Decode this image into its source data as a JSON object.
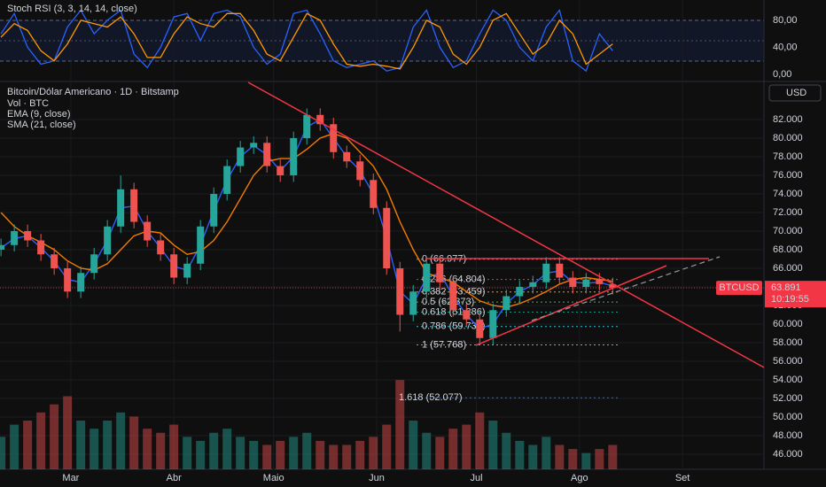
{
  "chart_data": [
    {
      "type": "line",
      "title": "Stoch RSI (3, 3, 14, 14, close)",
      "x": [
        -21,
        -17,
        -13,
        -9,
        -5,
        -1,
        3,
        7,
        11,
        15,
        19,
        23,
        27,
        31,
        35,
        39,
        43,
        47,
        51,
        55,
        59,
        63,
        67,
        71,
        75,
        79,
        83,
        87,
        91,
        95,
        99,
        103,
        107,
        111,
        115,
        119,
        123,
        127,
        131,
        135,
        139,
        143,
        147,
        151,
        155,
        159,
        163
      ],
      "xlim": [
        -21.3,
        208.5
      ],
      "ylim": [
        -10.5,
        110
      ],
      "yticks": [
        {
          "value": 0,
          "label": "0,00"
        },
        {
          "value": 40,
          "label": "40,00"
        },
        {
          "value": 80,
          "label": "80,00"
        }
      ],
      "series": [
        {
          "color": "#2962ff",
          "values": [
            60,
            90,
            40,
            15,
            20,
            70,
            95,
            60,
            80,
            95,
            30,
            10,
            40,
            85,
            90,
            50,
            90,
            95,
            85,
            40,
            15,
            30,
            90,
            95,
            60,
            20,
            10,
            15,
            20,
            5,
            10,
            70,
            95,
            40,
            10,
            20,
            60,
            95,
            80,
            40,
            20,
            70,
            95,
            20,
            5,
            60,
            35
          ]
        },
        {
          "color": "#ff9800",
          "values": [
            55,
            75,
            65,
            35,
            20,
            45,
            80,
            75,
            70,
            85,
            60,
            25,
            25,
            60,
            85,
            75,
            70,
            90,
            90,
            65,
            30,
            20,
            55,
            90,
            80,
            45,
            15,
            12,
            15,
            12,
            8,
            40,
            80,
            70,
            30,
            15,
            40,
            80,
            90,
            60,
            30,
            45,
            80,
            60,
            15,
            30,
            45
          ]
        }
      ]
    },
    {
      "type": "candlestick",
      "title": "Bitcoin/Dólar Americano · 1D · Bitstamp",
      "currency": "USD",
      "x": [
        -21,
        -17,
        -13,
        -9,
        -5,
        -1,
        3,
        7,
        11,
        15,
        19,
        23,
        27,
        31,
        35,
        39,
        43,
        47,
        51,
        55,
        59,
        63,
        67,
        71,
        75,
        79,
        83,
        87,
        91,
        95,
        99,
        103,
        107,
        111,
        115,
        119,
        123,
        127,
        131,
        135,
        139,
        143,
        147,
        151,
        155,
        159,
        163
      ],
      "open": [
        68000,
        68500,
        70000,
        69000,
        67500,
        66000,
        63500,
        65500,
        67500,
        70500,
        74500,
        71000,
        69000,
        67500,
        65000,
        66500,
        70500,
        74000,
        77000,
        79000,
        79500,
        77000,
        76000,
        80000,
        82500,
        81500,
        78500,
        77500,
        75500,
        72500,
        66000,
        61000,
        63500,
        66500,
        64500,
        61500,
        60500,
        58500,
        61500,
        63000,
        64000,
        64500,
        66500,
        65000,
        64000,
        64800,
        64300
      ],
      "high": [
        69200,
        70700,
        70700,
        69700,
        68200,
        66700,
        66200,
        68200,
        71200,
        76000,
        75200,
        71700,
        69700,
        68200,
        67200,
        71200,
        74700,
        77700,
        79700,
        80200,
        80200,
        77700,
        80700,
        83200,
        83200,
        82200,
        79200,
        78200,
        76200,
        73200,
        66700,
        64200,
        67200,
        67200,
        65200,
        62200,
        61200,
        62200,
        63700,
        64700,
        65200,
        67200,
        67200,
        65700,
        65500,
        65500,
        65000
      ],
      "low": [
        67300,
        67800,
        68300,
        66800,
        65300,
        62800,
        62800,
        64800,
        66800,
        69800,
        70300,
        68300,
        66800,
        64300,
        64300,
        65800,
        69800,
        73300,
        76300,
        78300,
        76300,
        75300,
        75300,
        79300,
        80800,
        77800,
        76800,
        74800,
        71800,
        65300,
        59200,
        60300,
        62800,
        63800,
        60800,
        59800,
        57800,
        57800,
        60800,
        62300,
        63300,
        63800,
        64300,
        63300,
        63300,
        63600,
        63200
      ],
      "close": [
        68500,
        70000,
        69000,
        67500,
        66000,
        63500,
        65500,
        67500,
        70500,
        74500,
        71000,
        69000,
        67500,
        65000,
        66500,
        70500,
        74000,
        77000,
        79000,
        79500,
        77000,
        76000,
        80000,
        82500,
        81500,
        78500,
        77500,
        75500,
        72500,
        66000,
        61000,
        63500,
        66500,
        64500,
        61500,
        60500,
        58500,
        61500,
        63000,
        64000,
        64500,
        66500,
        65000,
        64000,
        64800,
        64300,
        63891
      ],
      "up_color": "#26a69a",
      "down_color": "#ef5350",
      "volume": {
        "label": "Vol · BTC",
        "ylim": [
          0,
          120
        ],
        "values": [
          40,
          55,
          60,
          70,
          80,
          90,
          60,
          50,
          60,
          70,
          65,
          50,
          45,
          55,
          40,
          35,
          45,
          50,
          40,
          35,
          30,
          35,
          40,
          45,
          35,
          30,
          30,
          35,
          40,
          55,
          110,
          60,
          45,
          40,
          50,
          55,
          70,
          60,
          45,
          35,
          30,
          40,
          30,
          25,
          20,
          25,
          30
        ]
      },
      "overlays": [
        {
          "name": "EMA (9, close)",
          "color": "#2962ff",
          "values": [
            68200,
            69200,
            69500,
            68200,
            66800,
            64800,
            64500,
            66500,
            69000,
            72500,
            72700,
            70000,
            68200,
            66200,
            65800,
            68500,
            72200,
            75500,
            78000,
            79200,
            78200,
            76500,
            78000,
            81200,
            82000,
            80000,
            78000,
            76500,
            74000,
            69200,
            63500,
            62200,
            65000,
            65500,
            63000,
            61000,
            59500,
            60000,
            62200,
            63500,
            64200,
            65500,
            65700,
            64500,
            64400,
            64500,
            64100
          ]
        },
        {
          "name": "SMA (21, close)",
          "color": "#f57c00",
          "values": [
            72000,
            70500,
            69500,
            68800,
            68000,
            66800,
            66000,
            65800,
            66500,
            68000,
            69500,
            70000,
            69800,
            68500,
            67500,
            67800,
            69000,
            71000,
            73500,
            76000,
            77500,
            77800,
            77800,
            78800,
            80000,
            80500,
            80000,
            78500,
            77000,
            74500,
            71000,
            68000,
            65500,
            65000,
            64500,
            63500,
            62500,
            62000,
            61800,
            62200,
            62800,
            63500,
            64300,
            64800,
            65000,
            64800,
            64600
          ]
        }
      ],
      "xlim": [
        -21.3,
        208.5
      ],
      "xticks": [
        {
          "value": 0,
          "label": "Mar"
        },
        {
          "value": 31,
          "label": "Abr"
        },
        {
          "value": 61,
          "label": "Maio"
        },
        {
          "value": 92,
          "label": "Jun"
        },
        {
          "value": 122,
          "label": "Jul"
        },
        {
          "value": 153,
          "label": "Ago"
        },
        {
          "value": 184,
          "label": "Set"
        }
      ],
      "ylim": [
        44380,
        86100
      ],
      "yticks": [
        {
          "value": 46000,
          "label": "46.000"
        },
        {
          "value": 48000,
          "label": "48.000"
        },
        {
          "value": 50000,
          "label": "50.000"
        },
        {
          "value": 52000,
          "label": "52.000"
        },
        {
          "value": 54000,
          "label": "54.000"
        },
        {
          "value": 56000,
          "label": "56.000"
        },
        {
          "value": 58000,
          "label": "58.000"
        },
        {
          "value": 60000,
          "label": "60.000"
        },
        {
          "value": 62000,
          "label": "62.000"
        },
        {
          "value": 64000,
          "label": "64.000"
        },
        {
          "value": 66000,
          "label": "66.000"
        },
        {
          "value": 68000,
          "label": "68.000"
        },
        {
          "value": 70000,
          "label": "70.000"
        },
        {
          "value": 72000,
          "label": "72.000"
        },
        {
          "value": 74000,
          "label": "74.000"
        },
        {
          "value": 76000,
          "label": "76.000"
        },
        {
          "value": 78000,
          "label": "78.000"
        },
        {
          "value": 80000,
          "label": "80.000"
        },
        {
          "value": 82000,
          "label": "82.000"
        }
      ],
      "fib_levels": [
        {
          "label": "0 (66.977)",
          "value": 66977,
          "color": "#9e9e9e"
        },
        {
          "label": "0.236 (64.804)",
          "value": 64804,
          "color": "#f23645"
        },
        {
          "label": "0.382 (63.459)",
          "value": 63459,
          "color": "#ff9800"
        },
        {
          "label": "0.5 (62.373)",
          "value": 62373,
          "color": "#4caf50"
        },
        {
          "label": "0.618 (61.286)",
          "value": 61286,
          "color": "#089981"
        },
        {
          "label": "0.786 (59.739)",
          "value": 59739,
          "color": "#26c6da"
        },
        {
          "label": "1 (57.768)",
          "value": 57768,
          "color": "#9e9e9e"
        },
        {
          "label": "1.618 (52.077)",
          "value": 52077,
          "color": "#2962ff"
        }
      ],
      "last_price": {
        "symbol": "BTCUSD",
        "value": 63891,
        "label": "63.891",
        "countdown": "10:19:55",
        "color": "#f23645"
      }
    }
  ]
}
